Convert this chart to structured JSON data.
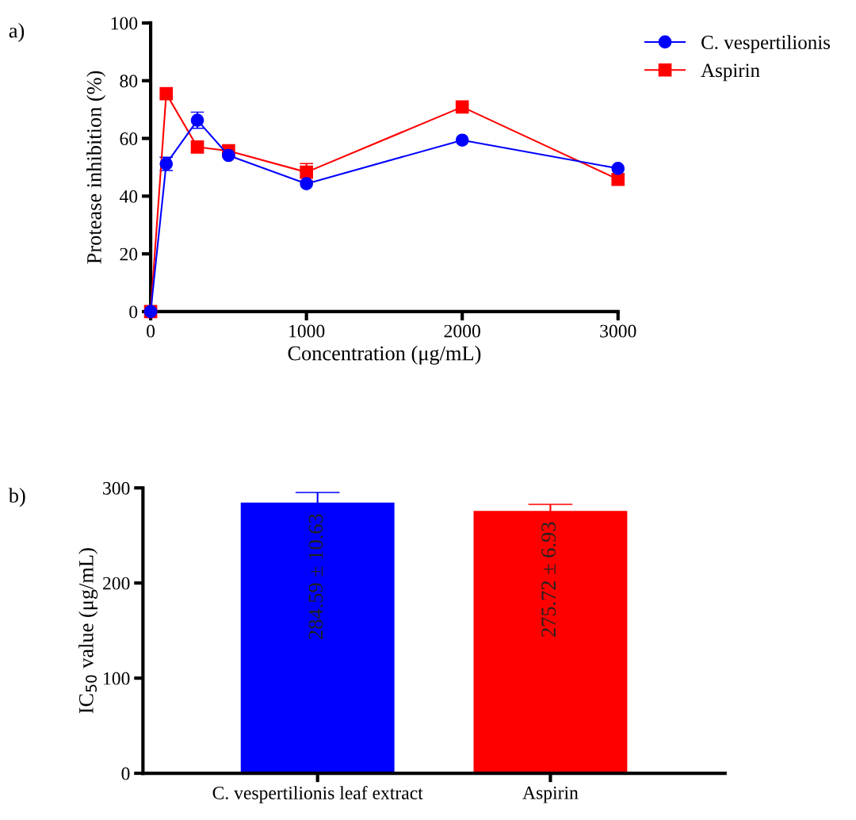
{
  "chart_data": [
    {
      "type": "line",
      "xlabel": "Concentration (μg/mL)",
      "ylabel": "Protease inhibition (%)",
      "annotations": [
        "a)"
      ],
      "xlim": [
        0,
        3000
      ],
      "xticks": [
        0,
        1000,
        2000,
        3000
      ],
      "ylim": [
        0,
        100
      ],
      "yticks": [
        0,
        20,
        40,
        60,
        80,
        100
      ],
      "grid": false,
      "legend": "top right",
      "series": [
        {
          "name": "C. vespertilionis",
          "color": "#0000ff",
          "marker": "circle",
          "x": [
            0,
            100,
            300,
            500,
            1000,
            2000,
            3000
          ],
          "values": [
            0,
            51.2,
            66.3,
            54.1,
            44.3,
            59.4,
            49.6
          ],
          "errors": [
            null,
            2.3,
            2.8,
            null,
            null,
            null,
            null
          ]
        },
        {
          "name": "Aspirin",
          "color": "#ff0000",
          "marker": "square",
          "x": [
            0,
            100,
            300,
            500,
            1000,
            2000,
            3000
          ],
          "values": [
            0,
            75.5,
            57.0,
            55.7,
            48.3,
            70.9,
            45.8
          ],
          "errors": [
            null,
            null,
            null,
            null,
            3.0,
            null,
            null
          ]
        }
      ]
    },
    {
      "type": "bar",
      "ylabel": "IC$_{50}$ value (μg/mL)",
      "annotations": [
        "b)"
      ],
      "categories": [
        "C. vespertilionis leaf extract",
        "Aspirin"
      ],
      "values": [
        284.59,
        275.72
      ],
      "errors": [
        10.63,
        6.93
      ],
      "colors": [
        "#0000ff",
        "#ff0000"
      ],
      "value_labels": [
        "284.59 ± 10.63",
        "275.72 ± 6.93"
      ],
      "ylim": [
        0,
        300
      ],
      "yticks": [
        0,
        100,
        200,
        300
      ],
      "grid": false
    }
  ]
}
